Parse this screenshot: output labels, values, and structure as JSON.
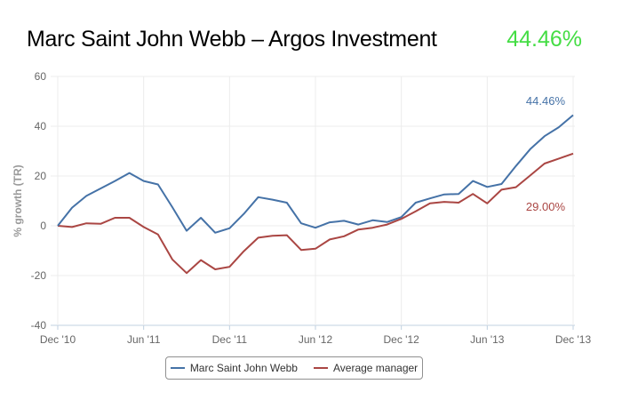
{
  "header": {
    "title": "Marc Saint John Webb – Argos Investment",
    "headline_value": "44.46%",
    "headline_color": "#44dd44"
  },
  "chart_data": {
    "type": "line",
    "title": "Marc Saint John Webb – Argos Investment",
    "xlabel": "",
    "ylabel": "% growth (TR)",
    "ylim": [
      -40,
      60
    ],
    "yticks": [
      60,
      40,
      20,
      0,
      -20,
      -40
    ],
    "xticks": [
      "Dec '10",
      "Jun '11",
      "Dec '11",
      "Jun '12",
      "Dec '12",
      "Jun '13",
      "Dec '13"
    ],
    "grid": true,
    "legend_position": "bottom",
    "x": [
      "Dec '10",
      "Jan '11",
      "Feb '11",
      "Mar '11",
      "Apr '11",
      "May '11",
      "Jun '11",
      "Jul '11",
      "Aug '11",
      "Sep '11",
      "Oct '11",
      "Nov '11",
      "Dec '11",
      "Jan '12",
      "Feb '12",
      "Mar '12",
      "Apr '12",
      "May '12",
      "Jun '12",
      "Jul '12",
      "Aug '12",
      "Sep '12",
      "Oct '12",
      "Nov '12",
      "Dec '12",
      "Jan '13",
      "Feb '13",
      "Mar '13",
      "Apr '13",
      "May '13",
      "Jun '13",
      "Jul '13",
      "Aug '13",
      "Sep '13",
      "Oct '13",
      "Nov '13",
      "Dec '13"
    ],
    "series": [
      {
        "name": "Marc Saint John Webb",
        "color": "#4572a7",
        "end_label": "44.46%",
        "values": [
          0,
          7.3,
          12,
          15,
          18,
          21.2,
          18,
          16.6,
          7.5,
          -2,
          3.2,
          -2.8,
          -1,
          4.8,
          11.5,
          10.5,
          9.3,
          1,
          -0.8,
          1.4,
          2,
          0.5,
          2.2,
          1.5,
          3.5,
          9.3,
          11,
          12.6,
          12.8,
          18,
          15.6,
          16.8,
          24,
          30.8,
          36,
          39.6,
          44.46
        ]
      },
      {
        "name": "Average manager",
        "color": "#aa4643",
        "end_label": "29.00%",
        "values": [
          0,
          -0.5,
          1,
          0.8,
          3.2,
          3.2,
          -0.5,
          -3.5,
          -13.5,
          -19,
          -13.8,
          -17.5,
          -16.5,
          -10.2,
          -4.8,
          -4,
          -3.8,
          -9.7,
          -9.2,
          -5.5,
          -4.2,
          -1.5,
          -0.8,
          0.5,
          2.8,
          5.8,
          9,
          9.6,
          9.3,
          12.8,
          9,
          14.5,
          15.5,
          20.2,
          25,
          27,
          29
        ]
      }
    ]
  },
  "legend": {
    "items": [
      {
        "label": "Marc Saint John Webb",
        "color": "#4572a7"
      },
      {
        "label": "Average manager",
        "color": "#aa4643"
      }
    ]
  }
}
